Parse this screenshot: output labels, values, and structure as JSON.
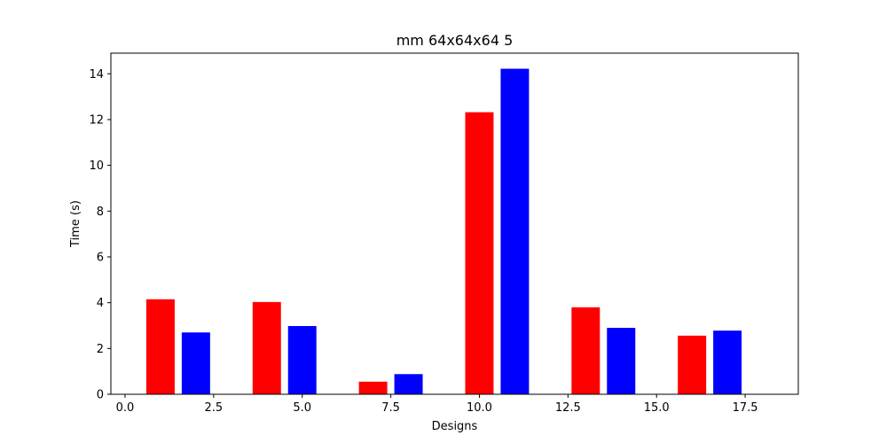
{
  "chart_data": {
    "type": "bar",
    "title": "mm 64x64x64 5",
    "xlabel": "Designs",
    "ylabel": "Time (s)",
    "xlim": [
      -0.4,
      19.0
    ],
    "ylim": [
      0,
      14.9
    ],
    "xticks": [
      0.0,
      2.5,
      5.0,
      7.5,
      10.0,
      12.5,
      15.0,
      17.5
    ],
    "xtick_labels": [
      "0.0",
      "2.5",
      "5.0",
      "7.5",
      "10.0",
      "12.5",
      "15.0",
      "17.5"
    ],
    "yticks": [
      0,
      2,
      4,
      6,
      8,
      10,
      12,
      14
    ],
    "ytick_labels": [
      "0",
      "2",
      "4",
      "6",
      "8",
      "10",
      "12",
      "14"
    ],
    "bar_width": 0.8,
    "grid": false,
    "series": [
      {
        "color": "#ff0000",
        "x": [
          1,
          4,
          7,
          10,
          13,
          16
        ],
        "values": [
          4.15,
          4.03,
          0.55,
          12.32,
          3.8,
          2.56
        ]
      },
      {
        "color": "#0000ff",
        "x": [
          2,
          5,
          8,
          11,
          14,
          17
        ],
        "values": [
          2.7,
          2.98,
          0.88,
          14.22,
          2.9,
          2.78
        ]
      }
    ]
  }
}
